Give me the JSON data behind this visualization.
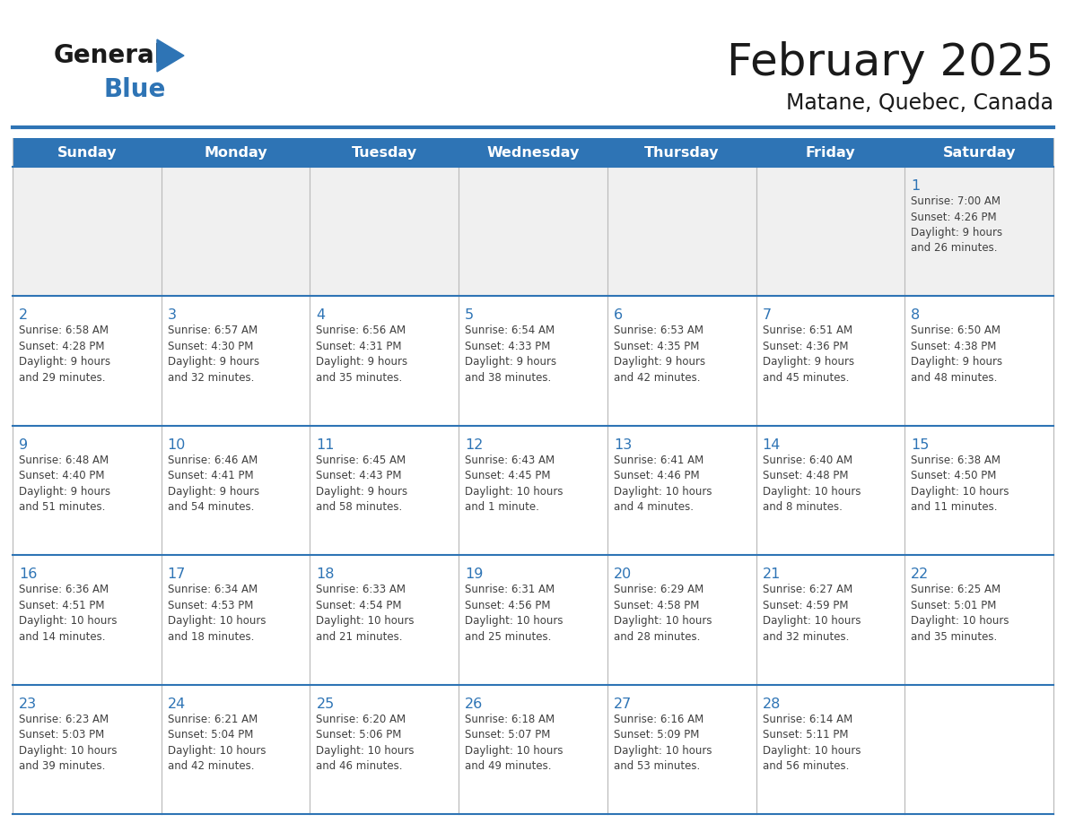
{
  "title": "February 2025",
  "subtitle": "Matane, Quebec, Canada",
  "days_of_week": [
    "Sunday",
    "Monday",
    "Tuesday",
    "Wednesday",
    "Thursday",
    "Friday",
    "Saturday"
  ],
  "header_bg_color": "#2E74B5",
  "header_text_color": "#FFFFFF",
  "cell_bg_color": "#FFFFFF",
  "row_border_color": "#2E74B5",
  "cell_border_color": "#BBBBBB",
  "title_color": "#1A1A1A",
  "day_number_color": "#2E74B5",
  "text_color": "#404040",
  "logo_general_color": "#1A1A1A",
  "logo_blue_color": "#2E74B5",
  "first_row_bg": "#F0F0F0",
  "calendar_data": [
    [
      {
        "day": null,
        "info": ""
      },
      {
        "day": null,
        "info": ""
      },
      {
        "day": null,
        "info": ""
      },
      {
        "day": null,
        "info": ""
      },
      {
        "day": null,
        "info": ""
      },
      {
        "day": null,
        "info": ""
      },
      {
        "day": 1,
        "info": "Sunrise: 7:00 AM\nSunset: 4:26 PM\nDaylight: 9 hours\nand 26 minutes."
      }
    ],
    [
      {
        "day": 2,
        "info": "Sunrise: 6:58 AM\nSunset: 4:28 PM\nDaylight: 9 hours\nand 29 minutes."
      },
      {
        "day": 3,
        "info": "Sunrise: 6:57 AM\nSunset: 4:30 PM\nDaylight: 9 hours\nand 32 minutes."
      },
      {
        "day": 4,
        "info": "Sunrise: 6:56 AM\nSunset: 4:31 PM\nDaylight: 9 hours\nand 35 minutes."
      },
      {
        "day": 5,
        "info": "Sunrise: 6:54 AM\nSunset: 4:33 PM\nDaylight: 9 hours\nand 38 minutes."
      },
      {
        "day": 6,
        "info": "Sunrise: 6:53 AM\nSunset: 4:35 PM\nDaylight: 9 hours\nand 42 minutes."
      },
      {
        "day": 7,
        "info": "Sunrise: 6:51 AM\nSunset: 4:36 PM\nDaylight: 9 hours\nand 45 minutes."
      },
      {
        "day": 8,
        "info": "Sunrise: 6:50 AM\nSunset: 4:38 PM\nDaylight: 9 hours\nand 48 minutes."
      }
    ],
    [
      {
        "day": 9,
        "info": "Sunrise: 6:48 AM\nSunset: 4:40 PM\nDaylight: 9 hours\nand 51 minutes."
      },
      {
        "day": 10,
        "info": "Sunrise: 6:46 AM\nSunset: 4:41 PM\nDaylight: 9 hours\nand 54 minutes."
      },
      {
        "day": 11,
        "info": "Sunrise: 6:45 AM\nSunset: 4:43 PM\nDaylight: 9 hours\nand 58 minutes."
      },
      {
        "day": 12,
        "info": "Sunrise: 6:43 AM\nSunset: 4:45 PM\nDaylight: 10 hours\nand 1 minute."
      },
      {
        "day": 13,
        "info": "Sunrise: 6:41 AM\nSunset: 4:46 PM\nDaylight: 10 hours\nand 4 minutes."
      },
      {
        "day": 14,
        "info": "Sunrise: 6:40 AM\nSunset: 4:48 PM\nDaylight: 10 hours\nand 8 minutes."
      },
      {
        "day": 15,
        "info": "Sunrise: 6:38 AM\nSunset: 4:50 PM\nDaylight: 10 hours\nand 11 minutes."
      }
    ],
    [
      {
        "day": 16,
        "info": "Sunrise: 6:36 AM\nSunset: 4:51 PM\nDaylight: 10 hours\nand 14 minutes."
      },
      {
        "day": 17,
        "info": "Sunrise: 6:34 AM\nSunset: 4:53 PM\nDaylight: 10 hours\nand 18 minutes."
      },
      {
        "day": 18,
        "info": "Sunrise: 6:33 AM\nSunset: 4:54 PM\nDaylight: 10 hours\nand 21 minutes."
      },
      {
        "day": 19,
        "info": "Sunrise: 6:31 AM\nSunset: 4:56 PM\nDaylight: 10 hours\nand 25 minutes."
      },
      {
        "day": 20,
        "info": "Sunrise: 6:29 AM\nSunset: 4:58 PM\nDaylight: 10 hours\nand 28 minutes."
      },
      {
        "day": 21,
        "info": "Sunrise: 6:27 AM\nSunset: 4:59 PM\nDaylight: 10 hours\nand 32 minutes."
      },
      {
        "day": 22,
        "info": "Sunrise: 6:25 AM\nSunset: 5:01 PM\nDaylight: 10 hours\nand 35 minutes."
      }
    ],
    [
      {
        "day": 23,
        "info": "Sunrise: 6:23 AM\nSunset: 5:03 PM\nDaylight: 10 hours\nand 39 minutes."
      },
      {
        "day": 24,
        "info": "Sunrise: 6:21 AM\nSunset: 5:04 PM\nDaylight: 10 hours\nand 42 minutes."
      },
      {
        "day": 25,
        "info": "Sunrise: 6:20 AM\nSunset: 5:06 PM\nDaylight: 10 hours\nand 46 minutes."
      },
      {
        "day": 26,
        "info": "Sunrise: 6:18 AM\nSunset: 5:07 PM\nDaylight: 10 hours\nand 49 minutes."
      },
      {
        "day": 27,
        "info": "Sunrise: 6:16 AM\nSunset: 5:09 PM\nDaylight: 10 hours\nand 53 minutes."
      },
      {
        "day": 28,
        "info": "Sunrise: 6:14 AM\nSunset: 5:11 PM\nDaylight: 10 hours\nand 56 minutes."
      },
      {
        "day": null,
        "info": ""
      }
    ]
  ]
}
